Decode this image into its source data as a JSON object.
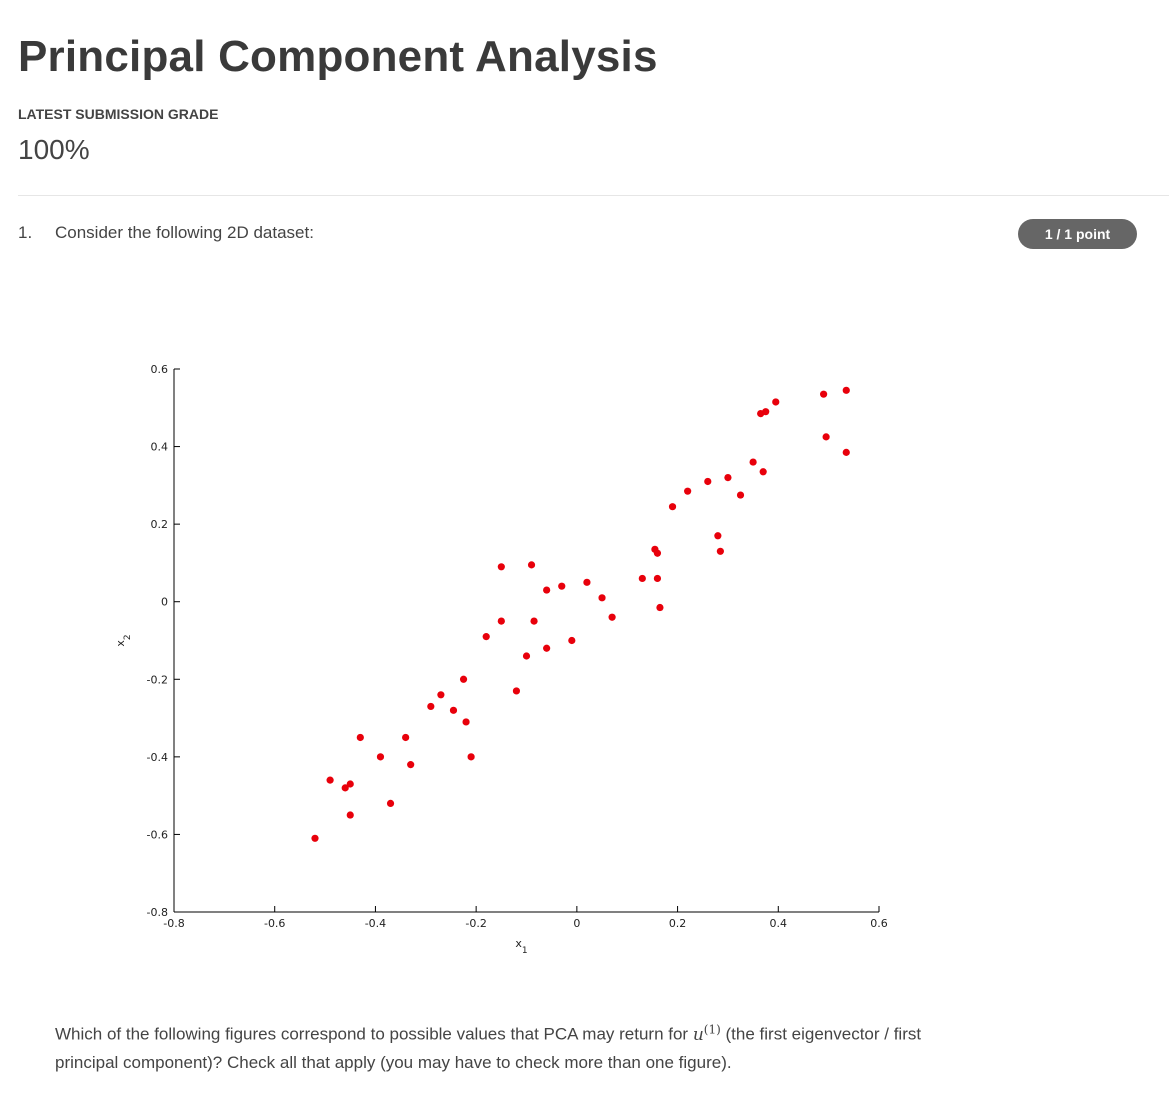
{
  "header": {
    "title": "Principal Component Analysis",
    "grade_label": "LATEST SUBMISSION GRADE",
    "grade_value": "100%"
  },
  "question": {
    "number": "1.",
    "text": "Consider the following 2D dataset:",
    "points": "1 / 1 point",
    "prompt_before": "Which of the following figures correspond to possible values that PCA may return for",
    "prompt_var": "u",
    "prompt_sup": "(1)",
    "prompt_after": "(the first eigenvector / first principal component)? Check all that apply (you may have to check more than one figure)."
  },
  "colors": {
    "marker": "#e8000b",
    "badge_bg": "#666666"
  },
  "chart_data": {
    "type": "scatter",
    "xlabel": "x1",
    "ylabel": "x2",
    "xlim": [
      -0.8,
      0.6
    ],
    "ylim": [
      -0.8,
      0.6
    ],
    "xticks": [
      -0.8,
      -0.6,
      -0.4,
      -0.2,
      0,
      0.2,
      0.4,
      0.6
    ],
    "yticks": [
      -0.8,
      -0.6,
      -0.4,
      -0.2,
      0,
      0.2,
      0.4,
      0.6
    ],
    "x_tick_labels": [
      "-0.8",
      "-0.6",
      "-0.4",
      "-0.2",
      "0",
      "0.2",
      "0.4",
      "0.6"
    ],
    "y_tick_labels": [
      "-0.8",
      "-0.6",
      "-0.4",
      "-0.2",
      "0",
      "0.2",
      "0.4",
      "0.6"
    ],
    "grid": false,
    "points": [
      [
        -0.52,
        -0.61
      ],
      [
        -0.49,
        -0.46
      ],
      [
        -0.46,
        -0.48
      ],
      [
        -0.45,
        -0.47
      ],
      [
        -0.45,
        -0.55
      ],
      [
        -0.43,
        -0.35
      ],
      [
        -0.39,
        -0.4
      ],
      [
        -0.37,
        -0.52
      ],
      [
        -0.34,
        -0.35
      ],
      [
        -0.33,
        -0.42
      ],
      [
        -0.29,
        -0.27
      ],
      [
        -0.27,
        -0.24
      ],
      [
        -0.245,
        -0.28
      ],
      [
        -0.225,
        -0.2
      ],
      [
        -0.22,
        -0.31
      ],
      [
        -0.21,
        -0.4
      ],
      [
        -0.18,
        -0.09
      ],
      [
        -0.15,
        0.09
      ],
      [
        -0.15,
        -0.05
      ],
      [
        -0.12,
        -0.23
      ],
      [
        -0.1,
        -0.14
      ],
      [
        -0.09,
        0.095
      ],
      [
        -0.085,
        -0.05
      ],
      [
        -0.06,
        0.03
      ],
      [
        -0.06,
        -0.12
      ],
      [
        -0.03,
        0.04
      ],
      [
        -0.01,
        -0.1
      ],
      [
        0.02,
        0.05
      ],
      [
        0.05,
        0.01
      ],
      [
        0.07,
        -0.04
      ],
      [
        0.13,
        0.06
      ],
      [
        0.155,
        0.135
      ],
      [
        0.16,
        0.125
      ],
      [
        0.16,
        0.06
      ],
      [
        0.165,
        -0.015
      ],
      [
        0.19,
        0.245
      ],
      [
        0.22,
        0.285
      ],
      [
        0.26,
        0.31
      ],
      [
        0.28,
        0.17
      ],
      [
        0.285,
        0.13
      ],
      [
        0.3,
        0.32
      ],
      [
        0.325,
        0.275
      ],
      [
        0.35,
        0.36
      ],
      [
        0.365,
        0.485
      ],
      [
        0.37,
        0.335
      ],
      [
        0.375,
        0.49
      ],
      [
        0.395,
        0.515
      ],
      [
        0.49,
        0.535
      ],
      [
        0.495,
        0.425
      ],
      [
        0.535,
        0.545
      ],
      [
        0.535,
        0.385
      ]
    ]
  }
}
